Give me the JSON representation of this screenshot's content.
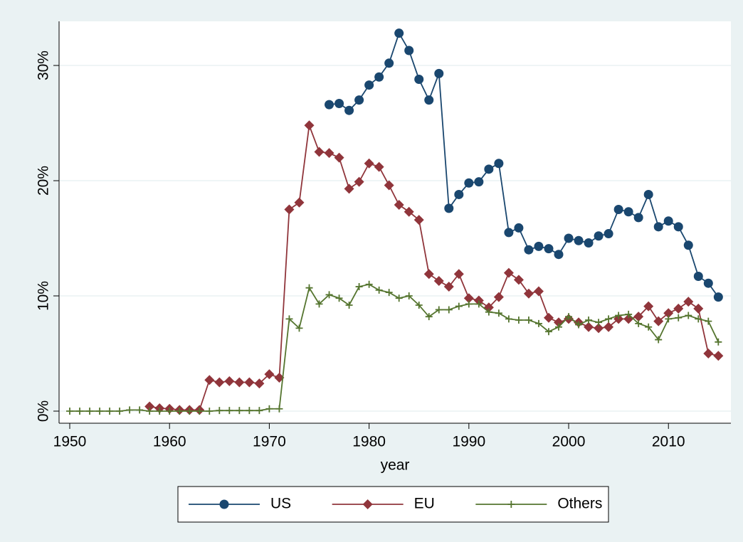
{
  "chart_data": {
    "type": "line",
    "x_label": "year",
    "x": [
      1950,
      1951,
      1952,
      1953,
      1954,
      1955,
      1956,
      1957,
      1958,
      1959,
      1960,
      1961,
      1962,
      1963,
      1964,
      1965,
      1966,
      1967,
      1968,
      1969,
      1970,
      1971,
      1972,
      1973,
      1974,
      1975,
      1976,
      1977,
      1978,
      1979,
      1980,
      1981,
      1982,
      1983,
      1984,
      1985,
      1986,
      1987,
      1988,
      1989,
      1990,
      1991,
      1992,
      1993,
      1994,
      1995,
      1996,
      1997,
      1998,
      1999,
      2000,
      2001,
      2002,
      2003,
      2004,
      2005,
      2006,
      2007,
      2008,
      2009,
      2010,
      2011,
      2012,
      2013,
      2014,
      2015
    ],
    "series": [
      {
        "name": "US",
        "color": "#1a476f",
        "marker": "circle",
        "values": [
          null,
          null,
          null,
          null,
          null,
          null,
          null,
          null,
          null,
          null,
          null,
          null,
          null,
          null,
          null,
          null,
          null,
          null,
          null,
          null,
          null,
          null,
          null,
          null,
          null,
          null,
          26.6,
          26.7,
          26.1,
          27.0,
          28.3,
          29.0,
          30.2,
          32.8,
          31.3,
          28.8,
          27.0,
          29.3,
          17.6,
          18.8,
          19.8,
          19.9,
          21.0,
          21.5,
          15.5,
          15.9,
          14.0,
          14.3,
          14.1,
          13.6,
          15.0,
          14.8,
          14.6,
          15.2,
          15.4,
          17.5,
          17.3,
          16.8,
          18.8,
          16.0,
          16.5,
          16.0,
          14.4,
          11.7,
          11.1,
          9.9
        ]
      },
      {
        "name": "EU",
        "color": "#90353b",
        "marker": "diamond",
        "values": [
          null,
          null,
          null,
          null,
          null,
          null,
          null,
          null,
          0.4,
          0.25,
          0.2,
          0.1,
          0.1,
          0.1,
          2.7,
          2.5,
          2.6,
          2.5,
          2.5,
          2.4,
          3.2,
          2.9,
          17.5,
          18.1,
          24.8,
          22.5,
          22.4,
          22.0,
          19.3,
          19.9,
          21.5,
          21.2,
          19.6,
          17.9,
          17.3,
          16.6,
          11.9,
          11.3,
          10.8,
          11.9,
          9.8,
          9.6,
          9.0,
          9.9,
          12.0,
          11.4,
          10.2,
          10.4,
          8.1,
          7.7,
          8.0,
          7.7,
          7.3,
          7.2,
          7.3,
          8.0,
          8.0,
          8.2,
          9.1,
          7.8,
          8.5,
          8.9,
          9.5,
          8.9,
          5.0,
          4.8
        ]
      },
      {
        "name": "Others",
        "color": "#55752f",
        "marker": "plus",
        "values": [
          0.0,
          0.0,
          0.0,
          0.0,
          0.0,
          0.0,
          0.1,
          0.1,
          0.0,
          0.0,
          0.0,
          0.0,
          0.0,
          0.0,
          0.0,
          0.05,
          0.05,
          0.05,
          0.05,
          0.05,
          0.2,
          0.2,
          8.0,
          7.2,
          10.7,
          9.3,
          10.1,
          9.8,
          9.2,
          10.8,
          11.0,
          10.5,
          10.3,
          9.8,
          10.0,
          9.2,
          8.2,
          8.8,
          8.8,
          9.1,
          9.3,
          9.3,
          8.6,
          8.5,
          8.0,
          7.9,
          7.9,
          7.6,
          6.9,
          7.3,
          8.2,
          7.5,
          7.9,
          7.7,
          8.0,
          8.3,
          8.4,
          7.6,
          7.3,
          6.2,
          8.0,
          8.1,
          8.3,
          8.0,
          7.8,
          6.0
        ]
      }
    ],
    "xlim": [
      1948.93,
      2016.26
    ],
    "xticks": [
      1950,
      1960,
      1970,
      1980,
      1990,
      2000,
      2010
    ],
    "ylim": [
      -1.05,
      33.83
    ],
    "yticks": [
      {
        "value": 0,
        "label": "0%"
      },
      {
        "value": 10,
        "label": "10%"
      },
      {
        "value": 20,
        "label": "20%"
      },
      {
        "value": 30,
        "label": "30%"
      }
    ],
    "grid": true,
    "legend": "bottom"
  }
}
